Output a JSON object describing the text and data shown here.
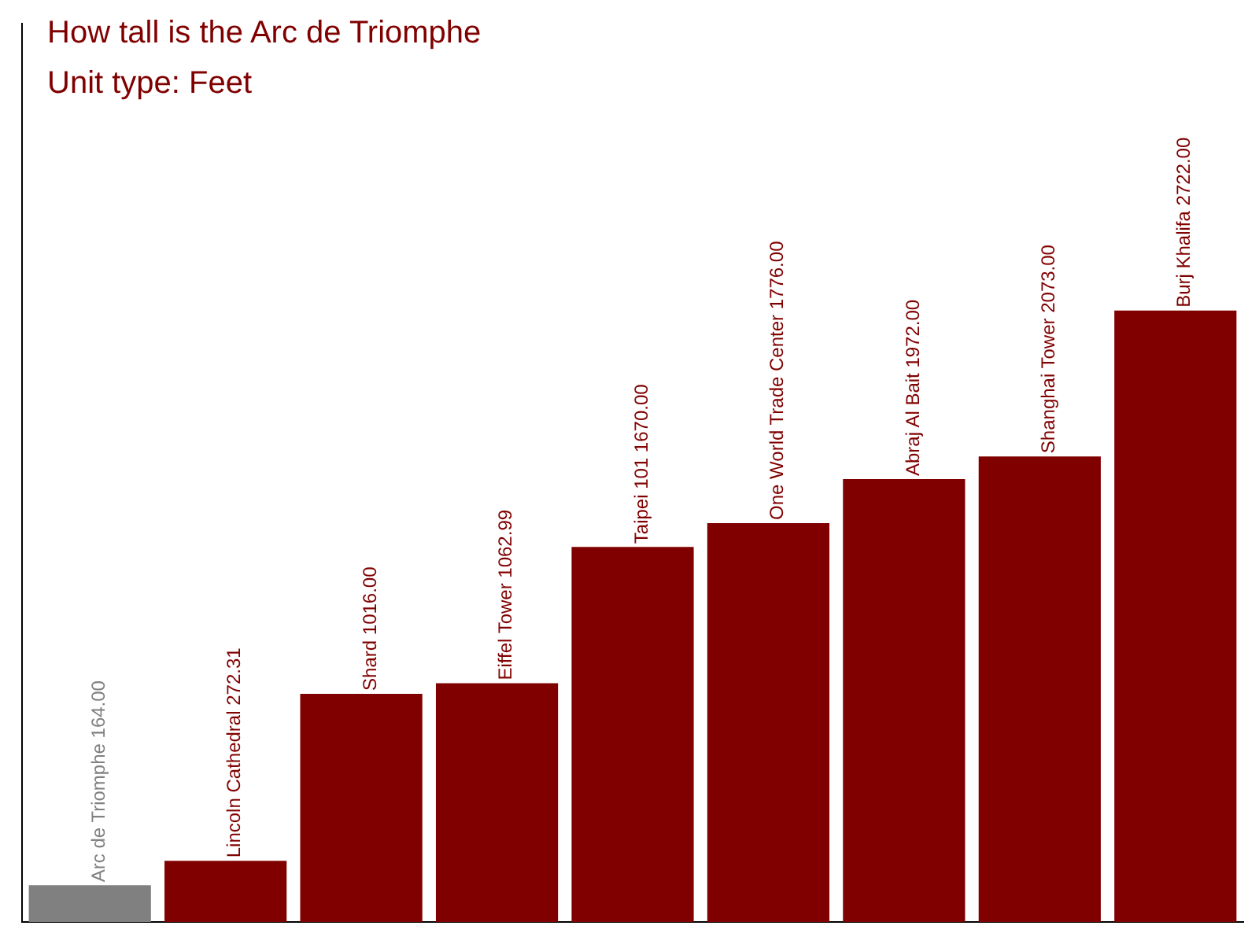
{
  "chart_data": {
    "type": "bar",
    "title": "How tall is the Arc de Triomphe",
    "subtitle": "Unit type: Feet",
    "categories": [
      null,
      null,
      null,
      null,
      null,
      null,
      null,
      null,
      null
    ],
    "values": [
      164,
      272.31,
      1016,
      1062.99,
      1670,
      1776,
      1972,
      2073,
      2722
    ],
    "value_labels": [
      "Arc de Triomphe 164.00",
      "Lincoln Cathedral 272.31",
      "Shard 1016.00",
      "Eiffel Tower 1062.99",
      "Taipei 101 1670.00",
      "One World Trade Center 1776.00",
      "Abraj Al Bait 1972.00",
      "Shanghai Tower 2073.00",
      "Burj Khalifa 2722.00"
    ],
    "colors": [
      "#808080",
      "#800000",
      "#800000",
      "#800000",
      "#800000",
      "#800000",
      "#800000",
      "#800000",
      "#800000"
    ]
  }
}
